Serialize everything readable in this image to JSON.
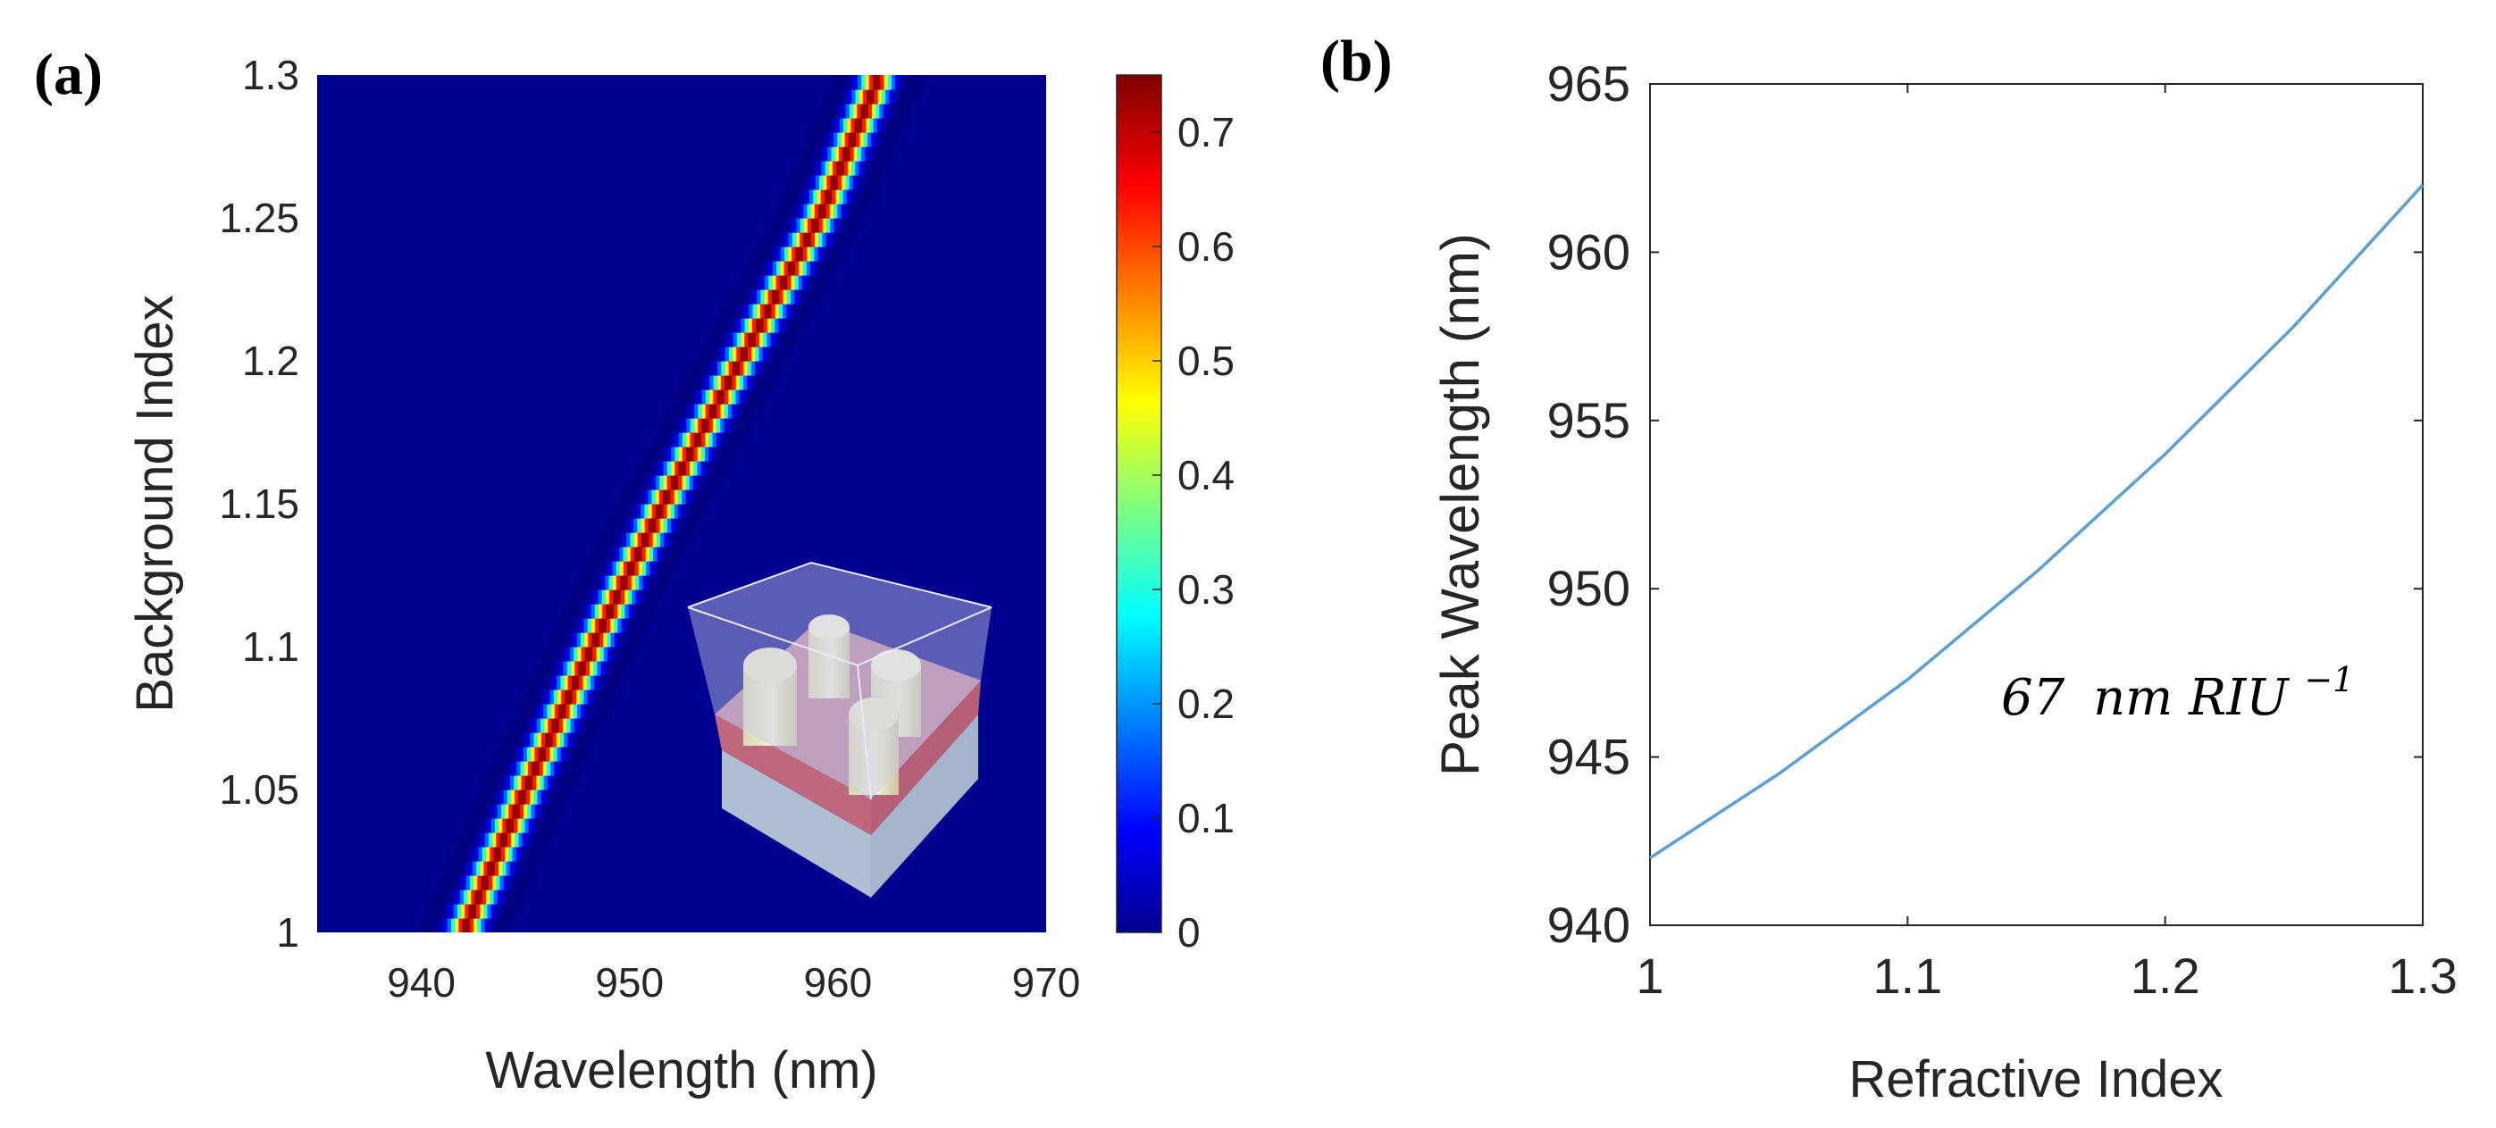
{
  "panel_labels": {
    "a": "(a)",
    "b": "(b)"
  },
  "chart_data": [
    {
      "type": "heatmap",
      "panel": "(a)",
      "xlabel": "Wavelength (nm)",
      "ylabel": "Background Index",
      "xlim": [
        935,
        970
      ],
      "ylim": [
        1.0,
        1.3
      ],
      "xticks": [
        940,
        950,
        960,
        970
      ],
      "xtick_labels": [
        "940",
        "950",
        "960",
        "970"
      ],
      "yticks": [
        1.0,
        1.05,
        1.1,
        1.15,
        1.2,
        1.25,
        1.3
      ],
      "ytick_labels": [
        "1",
        "1.05",
        "1.1",
        "1.15",
        "1.2",
        "1.25",
        "1.3"
      ],
      "colormap": "jet",
      "colorbar": {
        "range": [
          0,
          0.75
        ],
        "ticks": [
          0,
          0.1,
          0.2,
          0.3,
          0.4,
          0.5,
          0.6,
          0.7
        ],
        "tick_labels": [
          "0",
          "0.1",
          "0.2",
          "0.3",
          "0.4",
          "0.5",
          "0.6",
          "0.7"
        ]
      },
      "background_value": 0,
      "peak_value": 0.75,
      "peak_curve": {
        "background_index": [
          1.0,
          1.05,
          1.1,
          1.15,
          1.2,
          1.25,
          1.3
        ],
        "wavelength_nm": [
          942.0,
          945.0,
          948.2,
          951.6,
          955.3,
          959.1,
          962.0
        ]
      },
      "inset": "3D unit cell illustration with four cylindrical pillars"
    },
    {
      "type": "line",
      "panel": "(b)",
      "xlabel": "Refractive Index",
      "ylabel": "Peak Wavelength (nm)",
      "xlim": [
        1.0,
        1.3
      ],
      "ylim": [
        940,
        965
      ],
      "xticks": [
        1.0,
        1.1,
        1.2,
        1.3
      ],
      "xtick_labels": [
        "1",
        "1.1",
        "1.2",
        "1.3"
      ],
      "yticks": [
        940,
        945,
        950,
        955,
        960,
        965
      ],
      "ytick_labels": [
        "940",
        "945",
        "950",
        "955",
        "960",
        "965"
      ],
      "series": [
        {
          "color": "#5a9fd6",
          "x": [
            1.0,
            1.05,
            1.1,
            1.15,
            1.2,
            1.25,
            1.3
          ],
          "y": [
            942.0,
            944.5,
            947.3,
            950.5,
            954.0,
            957.8,
            962.0
          ]
        }
      ],
      "annotation": {
        "number": "67",
        "unit_main": "nm RIU",
        "unit_exp": "−1"
      }
    }
  ]
}
